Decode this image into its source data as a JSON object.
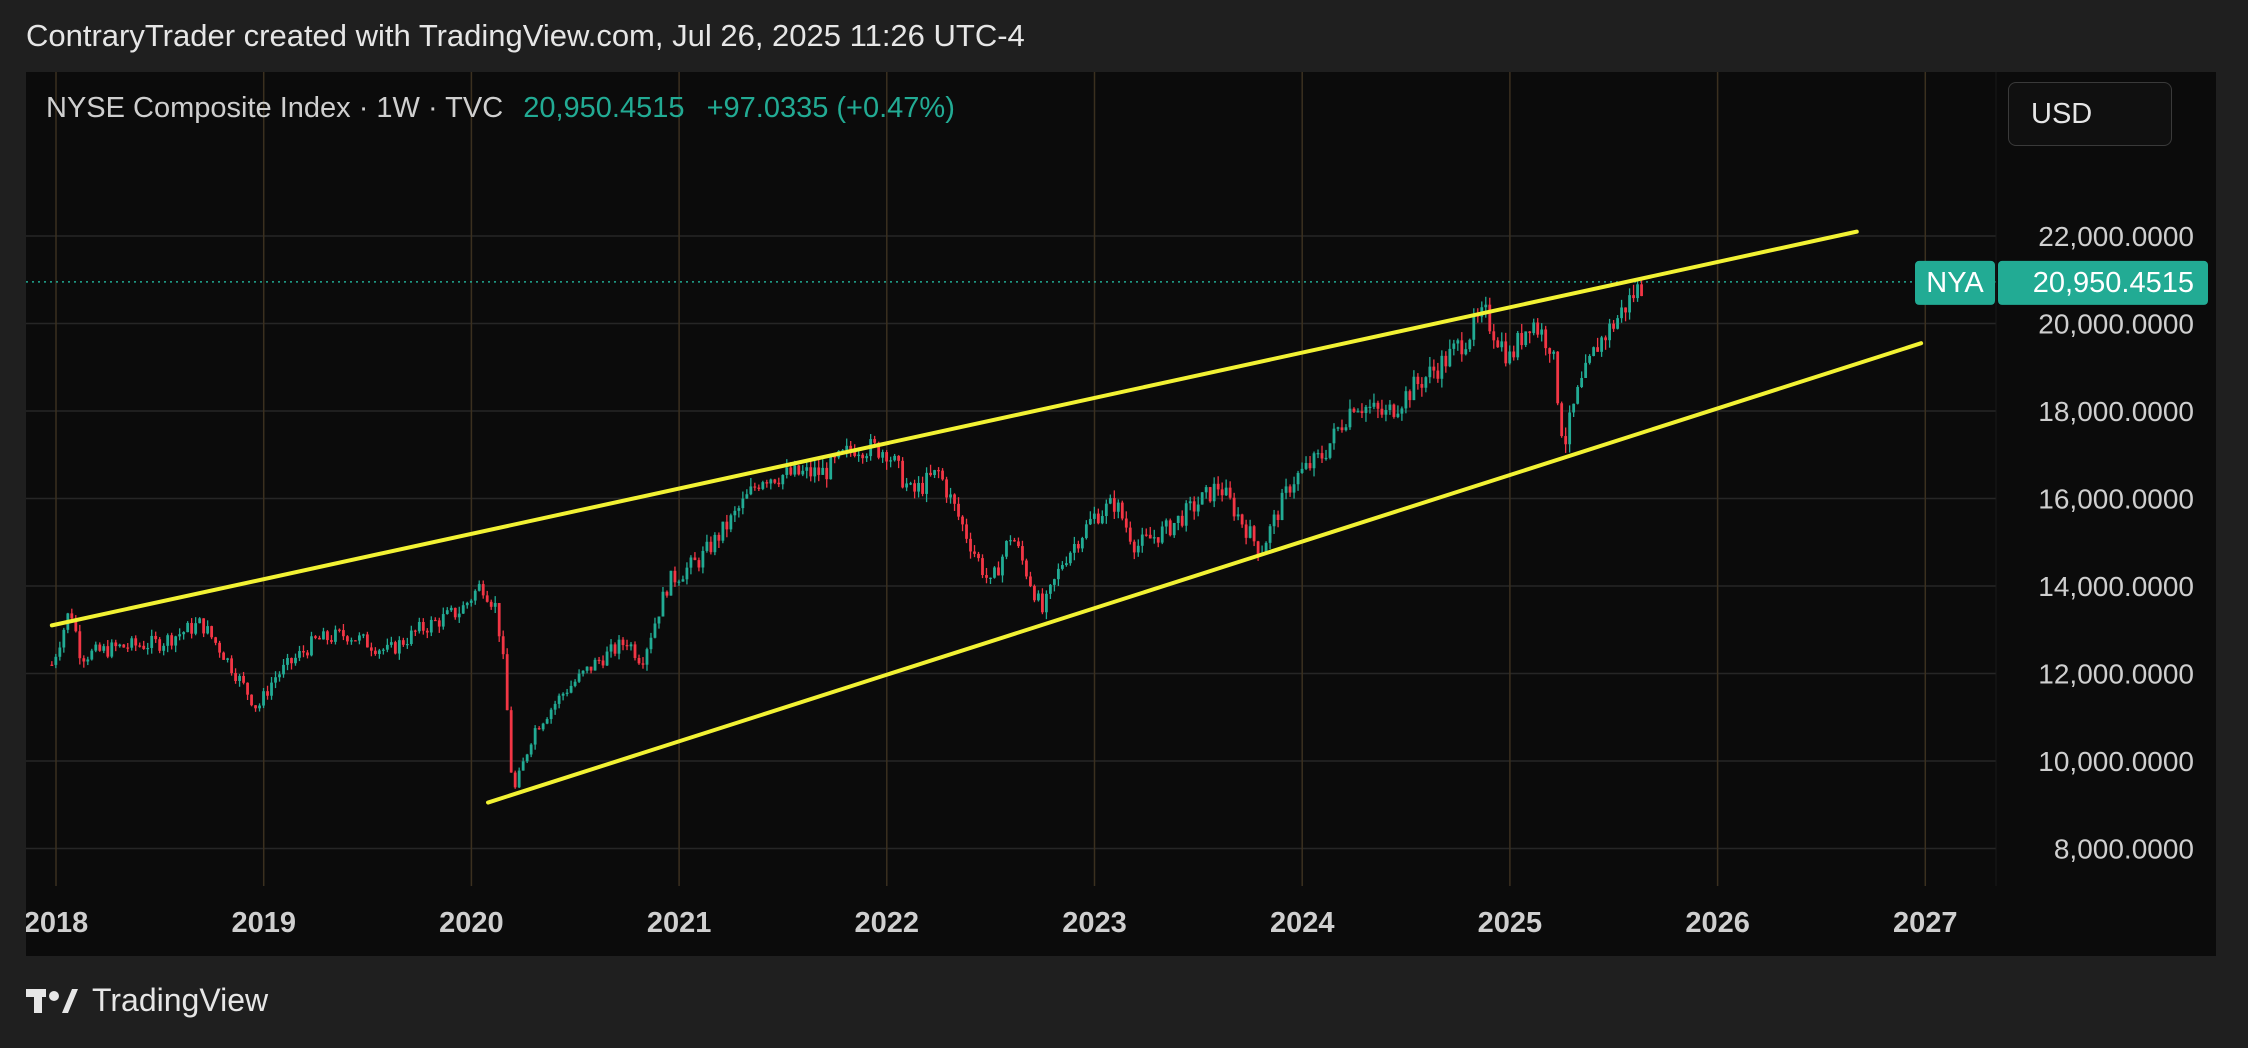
{
  "header": {
    "attribution": "ContraryTrader created with TradingView.com, Jul 26, 2025 11:26 UTC-4"
  },
  "legend": {
    "symbol_text": "NYSE Composite Index · 1W · TVC",
    "last": "20,950.4515",
    "change": "+97.0335 (+0.47%)"
  },
  "currency": {
    "label": "USD"
  },
  "price_tag": {
    "ticker": "NYA",
    "value": "20,950.4515"
  },
  "footer": {
    "brand": "TradingView"
  },
  "colors": {
    "up": "#22ab94",
    "down": "#f23645",
    "trendline": "#f2f233",
    "grid": "#262626",
    "year_line": "#3b301f",
    "axis_text": "#cfcfcf"
  },
  "chart_data": {
    "type": "candlestick",
    "ylim": [
      7600,
      23300
    ],
    "xlim": [
      2017.98,
      2027.2
    ],
    "last_price": 20950.4515,
    "y_ticks": [
      "8,000.0000",
      "10,000.0000",
      "12,000.0000",
      "14,000.0000",
      "16,000.0000",
      "18,000.0000",
      "20,000.0000",
      "22,000.0000"
    ],
    "y_tick_values": [
      8000,
      10000,
      12000,
      14000,
      16000,
      18000,
      20000,
      22000
    ],
    "x_ticks": [
      "2018",
      "2019",
      "2020",
      "2021",
      "2022",
      "2023",
      "2024",
      "2025",
      "2026",
      "2027"
    ],
    "x_tick_values": [
      2018,
      2019,
      2020,
      2021,
      2022,
      2023,
      2024,
      2025,
      2026,
      2027
    ],
    "trendlines": [
      {
        "role": "upper-channel",
        "x": [
          2017.98,
          2026.67
        ],
        "y": [
          13100,
          22100
        ]
      },
      {
        "role": "lower-channel",
        "x": [
          2020.08,
          2026.98
        ],
        "y": [
          9050,
          19550
        ]
      }
    ],
    "price_path": [
      [
        2017.98,
        12200
      ],
      [
        2018.07,
        13500
      ],
      [
        2018.12,
        12400
      ],
      [
        2018.3,
        12600
      ],
      [
        2018.5,
        12700
      ],
      [
        2018.7,
        13150
      ],
      [
        2018.8,
        12500
      ],
      [
        2018.97,
        11200
      ],
      [
        2019.05,
        11900
      ],
      [
        2019.25,
        12750
      ],
      [
        2019.4,
        12900
      ],
      [
        2019.6,
        12500
      ],
      [
        2019.75,
        13000
      ],
      [
        2019.95,
        13450
      ],
      [
        2020.05,
        14050
      ],
      [
        2020.12,
        13500
      ],
      [
        2020.16,
        12000
      ],
      [
        2020.2,
        9200
      ],
      [
        2020.3,
        10700
      ],
      [
        2020.45,
        11600
      ],
      [
        2020.6,
        12250
      ],
      [
        2020.75,
        12750
      ],
      [
        2020.82,
        12300
      ],
      [
        2020.95,
        14100
      ],
      [
        2021.1,
        14600
      ],
      [
        2021.25,
        15500
      ],
      [
        2021.4,
        16500
      ],
      [
        2021.55,
        16550
      ],
      [
        2021.7,
        16600
      ],
      [
        2021.85,
        17200
      ],
      [
        2022.0,
        17100
      ],
      [
        2022.12,
        16100
      ],
      [
        2022.25,
        16600
      ],
      [
        2022.4,
        15000
      ],
      [
        2022.5,
        14000
      ],
      [
        2022.6,
        15200
      ],
      [
        2022.75,
        13400
      ],
      [
        2022.85,
        14600
      ],
      [
        2023.0,
        15600
      ],
      [
        2023.1,
        15900
      ],
      [
        2023.2,
        14900
      ],
      [
        2023.35,
        15300
      ],
      [
        2023.5,
        15900
      ],
      [
        2023.6,
        16300
      ],
      [
        2023.8,
        14800
      ],
      [
        2023.95,
        16400
      ],
      [
        2024.1,
        17000
      ],
      [
        2024.25,
        18200
      ],
      [
        2024.4,
        17900
      ],
      [
        2024.55,
        18600
      ],
      [
        2024.7,
        19200
      ],
      [
        2024.88,
        20200
      ],
      [
        2025.0,
        19200
      ],
      [
        2025.1,
        20100
      ],
      [
        2025.2,
        19500
      ],
      [
        2025.26,
        17200
      ],
      [
        2025.32,
        18300
      ],
      [
        2025.42,
        19500
      ],
      [
        2025.5,
        20000
      ],
      [
        2025.6,
        20700
      ],
      [
        2025.65,
        20950
      ]
    ]
  }
}
